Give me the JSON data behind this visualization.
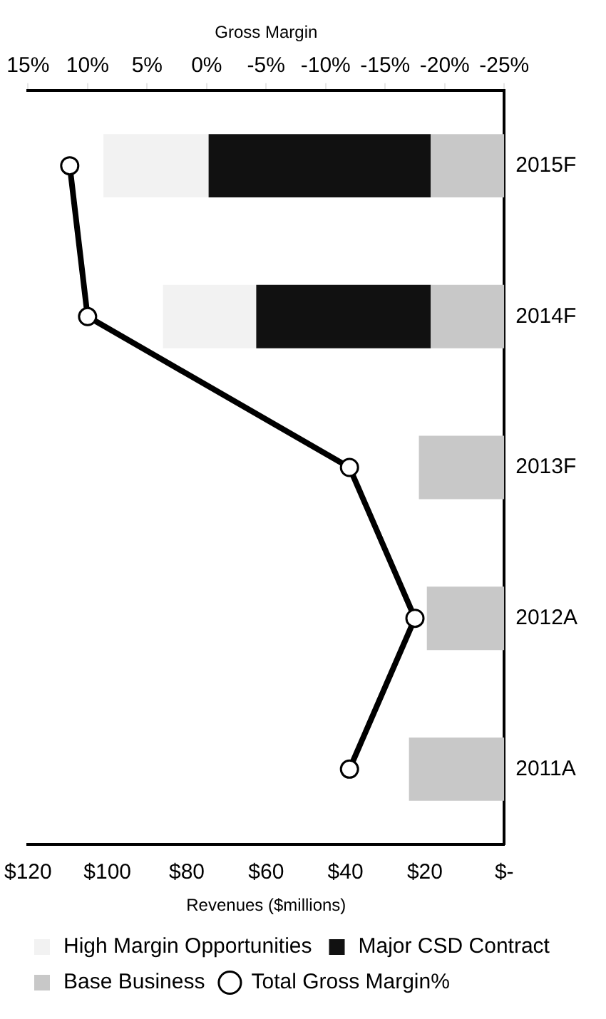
{
  "chart_data": {
    "type": "bar",
    "stacked": true,
    "orientation": "horizontal",
    "categories": [
      "2015F",
      "2014F",
      "2013F",
      "2012A",
      "2011A"
    ],
    "xlabel": "Revenues ($millions)",
    "x2label": "Gross Margin",
    "xlim": [
      120,
      0
    ],
    "xticks": [
      {
        "value": 120,
        "label": "$120"
      },
      {
        "value": 100,
        "label": "$100"
      },
      {
        "value": 80,
        "label": "$80"
      },
      {
        "value": 60,
        "label": "$60"
      },
      {
        "value": 40,
        "label": "$40"
      },
      {
        "value": 20,
        "label": "$20"
      },
      {
        "value": 0,
        "label": "$-"
      }
    ],
    "x2lim": [
      15,
      -25
    ],
    "x2ticks": [
      {
        "value": 15,
        "label": "15%"
      },
      {
        "value": 10,
        "label": "10%"
      },
      {
        "value": 5,
        "label": "5%"
      },
      {
        "value": 0,
        "label": "0%"
      },
      {
        "value": -5,
        "label": "-5%"
      },
      {
        "value": -10,
        "label": "-10%"
      },
      {
        "value": -15,
        "label": "-15%"
      },
      {
        "value": -20,
        "label": "-20%"
      },
      {
        "value": -25,
        "label": "-25%"
      }
    ],
    "grid": false,
    "legend": "bottom",
    "marker": "circle",
    "line_style": "solid",
    "series": [
      {
        "name": "Base Business",
        "color": "#c8c8c8",
        "values": [
          18.5,
          18.5,
          21.5,
          19.5,
          24
        ]
      },
      {
        "name": "Major CSD Contract",
        "color": "#111111",
        "values": [
          56,
          44,
          null,
          null,
          null
        ]
      },
      {
        "name": "High Margin Opportunities",
        "color": "#f2f2f2",
        "values": [
          26.5,
          23.5,
          null,
          null,
          null
        ]
      },
      {
        "name": "Total Gross Margin%",
        "type": "line",
        "axis": "x2",
        "color": "#000000",
        "values": [
          11.5,
          10,
          -12,
          -17.5,
          -12
        ]
      }
    ]
  }
}
